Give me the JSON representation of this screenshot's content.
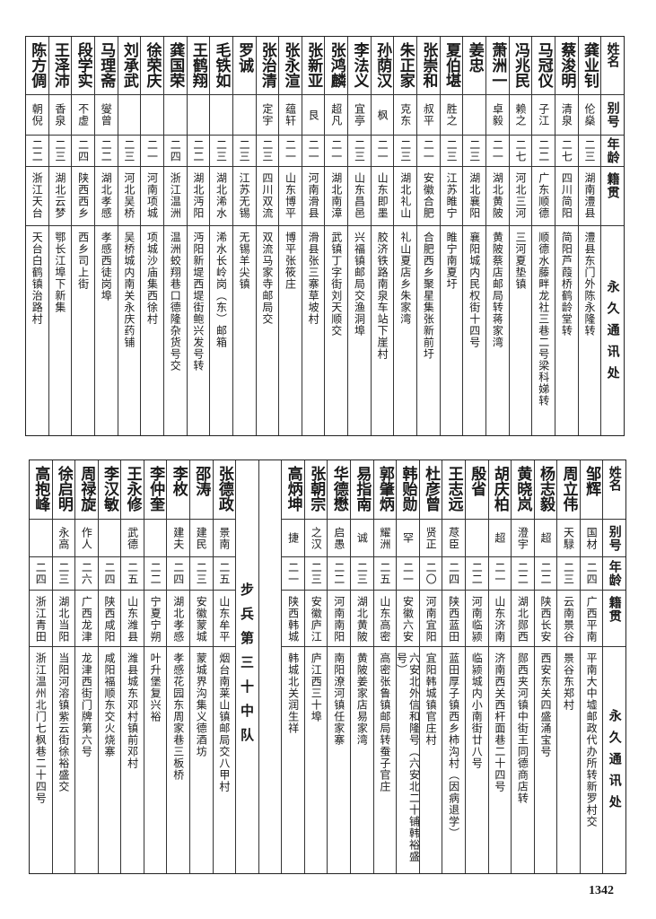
{
  "headers": {
    "name": "姓名",
    "alias": "别号",
    "age": "年龄",
    "origin": "籍贯",
    "address": "永久通讯处"
  },
  "top": {
    "entries": [
      {
        "name": "龚业钊",
        "alias": "伦燊",
        "age": "二三",
        "origin": "湖南澧县",
        "address": "澧县东门外陈永隆转"
      },
      {
        "name": "蔡浚明",
        "alias": "清泉",
        "age": "二七",
        "origin": "四川简阳",
        "address": "简阳芦葭桥鹤龄堂转"
      },
      {
        "name": "马冠仪",
        "alias": "子江",
        "age": "二二",
        "origin": "广东顺德",
        "address": "顺德水藤畔龙社三巷二号梁科娣转"
      },
      {
        "name": "冯兆民",
        "alias": "赖之",
        "age": "二七",
        "origin": "河北三河",
        "address": "三河夏垫镇"
      },
      {
        "name": "萧洲一",
        "alias": "卓毅",
        "age": "二一",
        "origin": "湖北黄陂",
        "address": "黄陂蔡店邮局转蒋家湾"
      },
      {
        "name": "姜忠",
        "alias": "",
        "age": "二三",
        "origin": "湖北襄阳",
        "address": "襄阳城内民权街十四号"
      },
      {
        "name": "夏伯堪",
        "alias": "胜之",
        "age": "二三",
        "origin": "江苏睢宁",
        "address": "睢宁南夏圩"
      },
      {
        "name": "张崇和",
        "alias": "叔平",
        "age": "二一",
        "origin": "安徽合肥",
        "address": "合肥西乡聚星集张新前圩"
      },
      {
        "name": "朱正家",
        "alias": "克东",
        "age": "二三",
        "origin": "湖北礼山",
        "address": "礼山夏店乡朱家湾"
      },
      {
        "name": "孙荫汉",
        "alias": "枫",
        "age": "二一",
        "origin": "山东即墨",
        "address": "胶济铁路南泉车站下崖村"
      },
      {
        "name": "李法义",
        "alias": "宜亭",
        "age": "二三",
        "origin": "山东昌邑",
        "address": "兴福镇邮局交渔洞埠"
      },
      {
        "name": "张鸿麟",
        "alias": "超凡",
        "age": "二一",
        "origin": "湖北南漳",
        "address": "武镇丁字街刘天顺交"
      },
      {
        "name": "张新亚",
        "alias": "艮",
        "age": "二一",
        "origin": "河南滑县",
        "address": "滑县张三寨草坡村"
      },
      {
        "name": "张永渲",
        "alias": "蕴轩",
        "age": "二一",
        "origin": "山东博平",
        "address": "博平张筱庄"
      },
      {
        "name": "张治清",
        "alias": "定宇",
        "age": "二三",
        "origin": "四川双流",
        "address": "双流马家寺邮局交"
      },
      {
        "name": "罗诚",
        "alias": "",
        "age": "二三",
        "origin": "江苏无锡",
        "address": "无锡羊尖镇"
      },
      {
        "name": "毛铁如",
        "alias": "",
        "age": "二三",
        "origin": "湖北浠水",
        "address": "浠水长岭岗（东）邮箱"
      },
      {
        "name": "王鹤翔",
        "alias": "",
        "age": "二二",
        "origin": "湖北沔阳",
        "address": "沔阳新堤西堤街鲍兴发号转"
      },
      {
        "name": "龚国荣",
        "alias": "",
        "age": "二四",
        "origin": "浙江温洲",
        "address": "温洲蛟翔巷口德隆杂货号交"
      },
      {
        "name": "徐荣庆",
        "alias": "",
        "age": "二一",
        "origin": "河南项城",
        "address": "项城沙庙集西徐村"
      },
      {
        "name": "刘承武",
        "alias": "",
        "age": "二三",
        "origin": "河北吴桥",
        "address": "吴桥城内南关永庆药铺"
      },
      {
        "name": "马理斋",
        "alias": "燮曾",
        "age": "二二",
        "origin": "湖北孝感",
        "address": "孝感西徒岗埠"
      },
      {
        "name": "段学实",
        "alias": "不虚",
        "age": "二四",
        "origin": "陕西西乡",
        "address": "西乡司上街"
      },
      {
        "name": "王泽沛",
        "alias": "香泉",
        "age": "二三",
        "origin": "湖北云梦",
        "address": "鄂长江埠下新集"
      },
      {
        "name": "陈方倜",
        "alias": "朝倪",
        "age": "二二",
        "origin": "浙江天台",
        "address": "天台白鹤镇治路村"
      }
    ]
  },
  "bottom": {
    "entries_right": [
      {
        "name": "邹辉",
        "alias": "国材",
        "age": "二四",
        "origin": "广西平南",
        "address": "平南大中墟邮政代办所转新罗村交"
      },
      {
        "name": "周立伟",
        "alias": "天騄",
        "age": "二三",
        "origin": "云南景谷",
        "address": "景谷东郑村"
      },
      {
        "name": "杨志毅",
        "alias": "超",
        "age": "二二",
        "origin": "陕西长安",
        "address": "西安东关四盛涌宝号"
      },
      {
        "name": "黄晓岚",
        "alias": "澄宇",
        "age": "二二",
        "origin": "湖北郧西",
        "address": "郧西夹河镇中街王同德商店转"
      },
      {
        "name": "胡庆柏",
        "alias": "超",
        "age": "二一",
        "origin": "山东济南",
        "address": "济南西关西杆面巷二十四号"
      },
      {
        "name": "殷省",
        "alias": "",
        "age": "二二",
        "origin": "河南临颍",
        "address": "临颍城内小南街廿八号"
      },
      {
        "name": "王志远",
        "alias": "荩臣",
        "age": "二四",
        "origin": "陕西蓝田",
        "address": "蓝田厚子镇西乡柿沟村（因病退学）"
      },
      {
        "name": "杜彦曾",
        "alias": "贤正",
        "age": "二〇",
        "origin": "河南宜阳",
        "address": "宜阳韩城镇官庄村"
      },
      {
        "name": "韩贻勋",
        "alias": "罕",
        "age": "二一",
        "origin": "安徽六安",
        "address": "六安北外信和隆号（六安北二十铺韩裕盛号）"
      },
      {
        "name": "郭肇炳",
        "alias": "耀洲",
        "age": "二五",
        "origin": "山东高密",
        "address": "高密张鲁镇邮局转蚕子官庄"
      },
      {
        "name": "易指南",
        "alias": "诚",
        "age": "二三",
        "origin": "湖北黄陂",
        "address": "黄陂姜家店易家湾"
      },
      {
        "name": "华德懋",
        "alias": "启愚",
        "age": "二二",
        "origin": "河南南阳",
        "address": "南阳潦河镇任家寨"
      },
      {
        "name": "张朝宗",
        "alias": "之汉",
        "age": "二三",
        "origin": "安徽庐江",
        "address": "庐江西三十埠"
      },
      {
        "name": "高炳坤",
        "alias": "捷",
        "age": "二一",
        "origin": "陕西韩城",
        "address": "韩城北关润生祥"
      }
    ],
    "divider": "步兵第三十中队",
    "entries_left": [
      {
        "name": "张德政",
        "alias": "景南",
        "age": "二五",
        "origin": "山东牟平",
        "address": "烟台南莱山镇邮局交八甲村"
      },
      {
        "name": "邵涛",
        "alias": "建民",
        "age": "二三",
        "origin": "安徽蒙城",
        "address": "蒙城界沟集义德酒坊"
      },
      {
        "name": "李枚",
        "alias": "建夫",
        "age": "二四",
        "origin": "湖北孝感",
        "address": "孝感花园东周家巷三板桥"
      },
      {
        "name": "李仲奎",
        "alias": "",
        "age": "二二",
        "origin": "宁夏宁朔",
        "address": "叶升堡复兴裕"
      },
      {
        "name": "王永修",
        "alias": "武德",
        "age": "二五",
        "origin": "山东潍县",
        "address": "潍县城东邓村镇前邓村"
      },
      {
        "name": "李汉敏",
        "alias": "",
        "age": "二四",
        "origin": "陕西咸阳",
        "address": "咸阳福顺东交火烧寨"
      },
      {
        "name": "周禄旋",
        "alias": "作人",
        "age": "二六",
        "origin": "广西龙津",
        "address": "龙津西街门牌第六号"
      },
      {
        "name": "徐启明",
        "alias": "永高",
        "age": "二三",
        "origin": "湖北当阳",
        "address": "当阳河溶镇紫云街徐裕盛交"
      },
      {
        "name": "高抱峰",
        "alias": "",
        "age": "二四",
        "origin": "浙江青田",
        "address": "浙江温州北门七枫巷二十四号"
      }
    ]
  },
  "page_number": "1342"
}
